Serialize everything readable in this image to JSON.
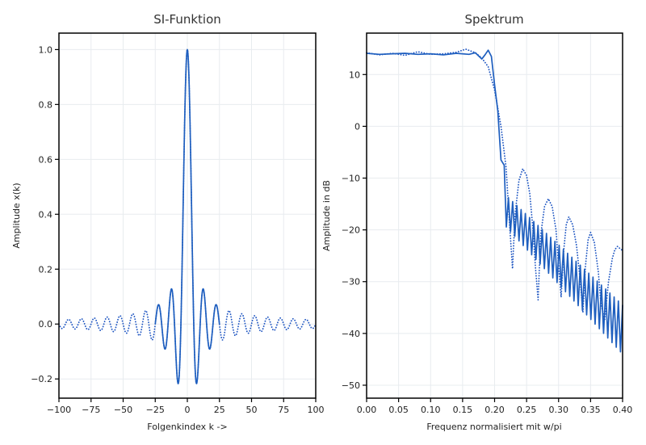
{
  "chart_data": [
    {
      "type": "line",
      "title": "SI-Funktion",
      "xlabel": "Folgenkindex k ->",
      "ylabel": "Amplitude x(k)",
      "xlim": [
        -100,
        100
      ],
      "ylim": [
        -0.27,
        1.06
      ],
      "xticks": [
        -100,
        -75,
        -50,
        -25,
        0,
        25,
        50,
        75,
        100
      ],
      "yticks": [
        -0.2,
        0.0,
        0.2,
        0.4,
        0.6,
        0.8,
        1.0
      ],
      "xtick_labels": [
        "−100",
        "−75",
        "−50",
        "−25",
        "0",
        "25",
        "50",
        "75",
        "100"
      ],
      "ytick_labels": [
        "−0.2",
        "0.0",
        "0.2",
        "0.4",
        "0.6",
        "0.8",
        "1.0"
      ],
      "grid": true,
      "series": [
        {
          "style": "dotted",
          "color": "#1f56c2",
          "function": "sinc",
          "cutoff": 0.2,
          "k_range": [
            -100,
            100
          ]
        },
        {
          "style": "solid",
          "color": "#1f5fbf",
          "function": "sinc",
          "cutoff": 0.2,
          "k_range": [
            -25,
            25
          ]
        }
      ]
    },
    {
      "type": "line",
      "title": "Spektrum",
      "xlabel": "Frequenz normalisiert mit w/pi",
      "ylabel": "Amplitude in dB",
      "xlim": [
        0.0,
        0.4
      ],
      "ylim": [
        -52.5,
        18
      ],
      "xticks": [
        0.0,
        0.05,
        0.1,
        0.15,
        0.2,
        0.25,
        0.3,
        0.35,
        0.4
      ],
      "yticks": [
        -50,
        -40,
        -30,
        -20,
        -10,
        0,
        10
      ],
      "xtick_labels": [
        "0.00",
        "0.05",
        "0.10",
        "0.15",
        "0.20",
        "0.25",
        "0.30",
        "0.35",
        "0.40"
      ],
      "ytick_labels": [
        "−50",
        "−40",
        "−30",
        "−20",
        "−10",
        "0",
        "10"
      ],
      "grid": true,
      "series": [
        {
          "style": "dotted",
          "color": "#1f56c2",
          "x": [
            0.0,
            0.02,
            0.04,
            0.06,
            0.08,
            0.1,
            0.12,
            0.14,
            0.155,
            0.17,
            0.18,
            0.19,
            0.2,
            0.21,
            0.218,
            0.224,
            0.228,
            0.232,
            0.238,
            0.244,
            0.25,
            0.255,
            0.26,
            0.264,
            0.268,
            0.272,
            0.278,
            0.284,
            0.29,
            0.296,
            0.3,
            0.304,
            0.308,
            0.312,
            0.316,
            0.322,
            0.328,
            0.334,
            0.338,
            0.342,
            0.346,
            0.35,
            0.356,
            0.362,
            0.366,
            0.372,
            0.378,
            0.384,
            0.388,
            0.392,
            0.396,
            0.4
          ],
          "y": [
            14.2,
            13.8,
            14.1,
            13.7,
            14.4,
            13.9,
            14.0,
            14.3,
            14.9,
            14.2,
            13.2,
            11.5,
            7.0,
            0.0,
            -8.0,
            -20.0,
            -27.5,
            -17.0,
            -10.5,
            -8.2,
            -9.5,
            -13.0,
            -20.0,
            -27.5,
            -33.5,
            -21.0,
            -15.5,
            -14.0,
            -15.5,
            -20.0,
            -27.0,
            -33.0,
            -24.0,
            -19.0,
            -17.5,
            -19.0,
            -23.0,
            -30.0,
            -36.0,
            -27.0,
            -22.0,
            -20.5,
            -22.5,
            -28.0,
            -34.0,
            -37.5,
            -30.0,
            -25.5,
            -23.8,
            -23.2,
            -23.6,
            -24.0
          ]
        },
        {
          "style": "solid",
          "color": "#1f5fbf",
          "x": [
            0.0,
            0.02,
            0.04,
            0.06,
            0.08,
            0.1,
            0.12,
            0.14,
            0.16,
            0.17,
            0.175,
            0.18,
            0.185,
            0.19,
            0.195,
            0.2,
            0.205,
            0.21,
            0.215,
            0.22,
            0.225,
            0.4
          ],
          "y": [
            14.1,
            13.9,
            14.0,
            14.1,
            13.9,
            14.0,
            13.8,
            14.1,
            13.9,
            14.2,
            13.6,
            13.0,
            13.8,
            14.7,
            13.5,
            8.0,
            3.0,
            -6.5,
            -7.5,
            -18.5,
            -13.0,
            -40.0
          ],
          "ripple": {
            "start": 0.215,
            "end": 0.4,
            "top_start": -13.0,
            "top_end": -34.5,
            "bottom_start": -19.0,
            "bottom_end": -44.0,
            "count": 28
          }
        }
      ]
    }
  ]
}
